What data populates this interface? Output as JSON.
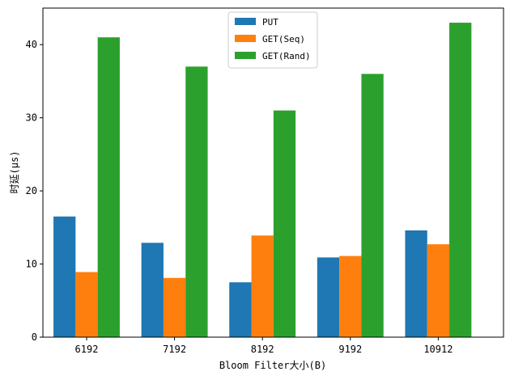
{
  "chart_data": {
    "type": "bar",
    "categories": [
      "6192",
      "7192",
      "8192",
      "9192",
      "10912"
    ],
    "series": [
      {
        "name": "PUT",
        "color": "#1f77b4",
        "values": [
          16.5,
          12.9,
          7.5,
          10.9,
          14.6
        ]
      },
      {
        "name": "GET(Seq)",
        "color": "#ff7f0e",
        "values": [
          8.9,
          8.1,
          13.9,
          11.1,
          12.7
        ]
      },
      {
        "name": "GET(Rand)",
        "color": "#2ca02c",
        "values": [
          41,
          37,
          31,
          36,
          43
        ]
      }
    ],
    "xlabel": "Bloom Filter大小(B)",
    "ylabel": "时延(μs)",
    "ylim": [
      0,
      45
    ],
    "yticks": [
      0,
      10,
      20,
      30,
      40
    ],
    "grid": false,
    "legend": "top-center"
  }
}
